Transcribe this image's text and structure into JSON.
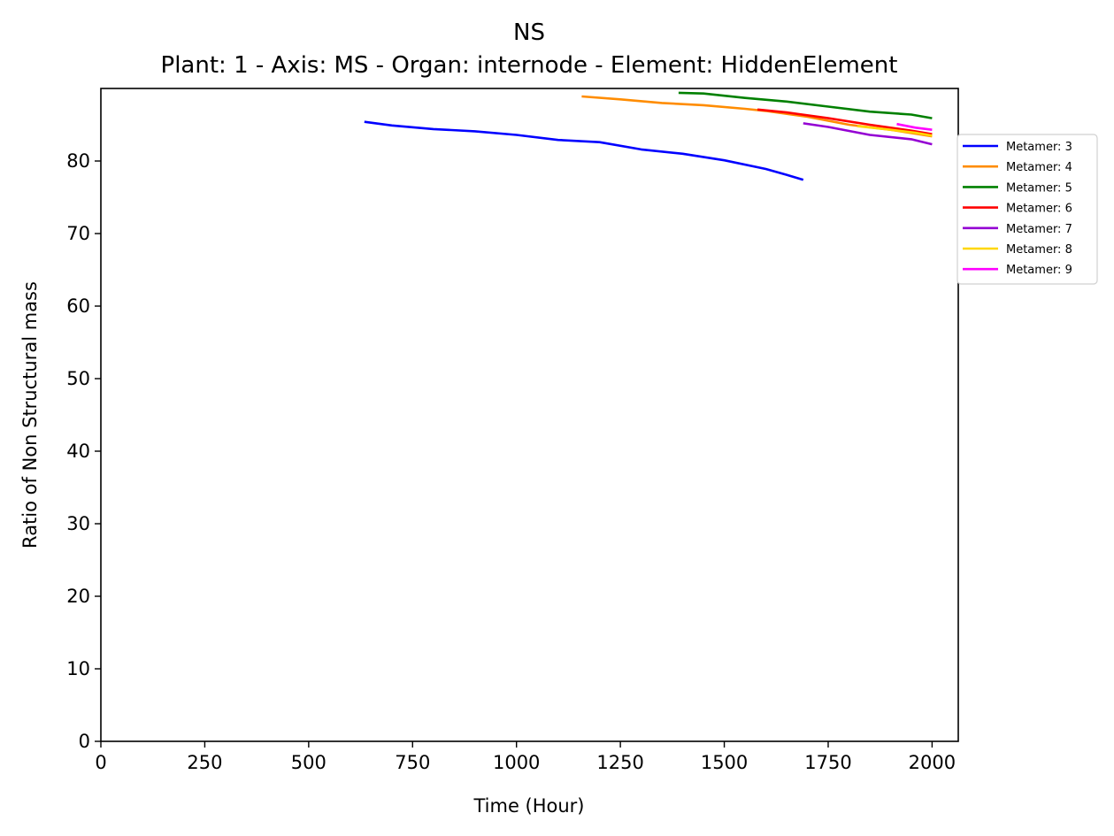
{
  "chart_data": {
    "type": "line",
    "title": "NS",
    "subtitle": "Plant: 1 - Axis: MS - Organ: internode - Element: HiddenElement",
    "xlabel": "Time (Hour)",
    "ylabel": "Ratio of Non Structural mass",
    "xlim": [
      0,
      2063
    ],
    "ylim": [
      0,
      90
    ],
    "xticks": [
      "0",
      "250",
      "500",
      "750",
      "1000",
      "1250",
      "1500",
      "1750",
      "2000"
    ],
    "yticks": [
      "0",
      "10",
      "20",
      "30",
      "40",
      "50",
      "60",
      "70",
      "80"
    ],
    "grid": false,
    "legend_position": "outside-right",
    "series": [
      {
        "name": "Metamer: 3",
        "color": "#0000ff",
        "x": [
          634,
          700,
          800,
          900,
          1000,
          1100,
          1200,
          1300,
          1400,
          1500,
          1600,
          1650,
          1690
        ],
        "y": [
          85.4,
          84.9,
          84.4,
          84.1,
          83.6,
          82.9,
          82.6,
          81.6,
          81.0,
          80.1,
          78.9,
          78.1,
          77.4
        ]
      },
      {
        "name": "Metamer: 4",
        "color": "#ff8c00",
        "x": [
          1157,
          1250,
          1350,
          1450,
          1550,
          1600,
          1700,
          1800,
          1900,
          2000
        ],
        "y": [
          88.9,
          88.5,
          88.0,
          87.7,
          87.2,
          86.9,
          86.1,
          85.0,
          84.3,
          83.4
        ]
      },
      {
        "name": "Metamer: 5",
        "color": "#008000",
        "x": [
          1390,
          1450,
          1550,
          1650,
          1750,
          1850,
          1950,
          2000
        ],
        "y": [
          89.4,
          89.3,
          88.7,
          88.2,
          87.5,
          86.8,
          86.4,
          85.9
        ]
      },
      {
        "name": "Metamer: 6",
        "color": "#ff0000",
        "x": [
          1580,
          1650,
          1750,
          1850,
          1950,
          2000
        ],
        "y": [
          87.1,
          86.7,
          85.9,
          85.0,
          84.2,
          83.7
        ]
      },
      {
        "name": "Metamer: 7",
        "color": "#9400d3",
        "x": [
          1690,
          1750,
          1850,
          1950,
          2000
        ],
        "y": [
          85.2,
          84.7,
          83.6,
          83.0,
          82.3
        ]
      },
      {
        "name": "Metamer: 8",
        "color": "#ffd700",
        "x": [
          1820,
          1900,
          1960,
          2000
        ],
        "y": [
          84.8,
          84.3,
          83.9,
          83.5
        ]
      },
      {
        "name": "Metamer: 9",
        "color": "#ff00ff",
        "x": [
          1915,
          1960,
          2000
        ],
        "y": [
          85.1,
          84.6,
          84.3
        ]
      }
    ]
  }
}
